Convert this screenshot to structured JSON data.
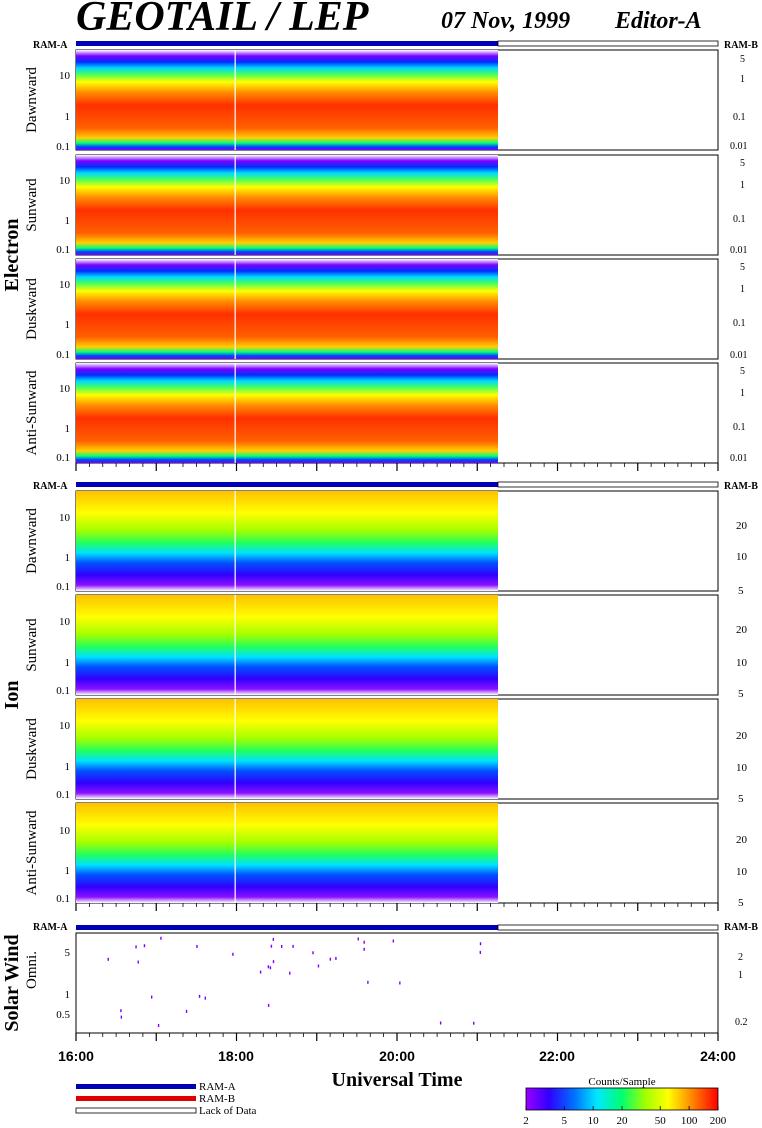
{
  "header": {
    "title": "GEOTAIL / LEP",
    "date": "07 Nov, 1999",
    "editor": "Editor-A"
  },
  "ram_labels": {
    "a": "RAM-A",
    "b": "RAM-B"
  },
  "colors": {
    "ram_a": "#0000b4",
    "ram_b": "#e00000",
    "lack_of_data": "#ffffff",
    "colorscale": [
      "#7a00ff",
      "#3000ff",
      "#0050ff",
      "#00c8ff",
      "#00ffb0",
      "#00ff30",
      "#a8ff00",
      "#ffff00",
      "#ffc000",
      "#ff7000",
      "#ff2000"
    ]
  },
  "chart_data": {
    "type": "heatmap",
    "description": "Energy-time spectrograms of counts per sample",
    "x_axis": {
      "label": "Universal Time",
      "range": [
        "16:00",
        "24:00"
      ],
      "ticks": [
        "16:00",
        "18:00",
        "20:00",
        "22:00",
        "24:00"
      ],
      "data_end": "21:15",
      "data_gap": "17:59"
    },
    "groups": [
      {
        "name": "Electron",
        "ram_segments": [
          {
            "mode": "RAM-A",
            "start": "16:00",
            "end": "21:15"
          },
          {
            "mode": "Lack of Data",
            "start": "21:15",
            "end": "24:00"
          }
        ],
        "left_ticks": [
          "10",
          "1",
          "0.1"
        ],
        "right_ticks": [
          "5",
          "1",
          "0.1",
          "0.01"
        ],
        "panels": [
          {
            "label": "Dawnward"
          },
          {
            "label": "Sunward"
          },
          {
            "label": "Duskward"
          },
          {
            "label": "Anti-Sunward"
          }
        ]
      },
      {
        "name": "Ion",
        "ram_segments": [
          {
            "mode": "RAM-A",
            "start": "16:00",
            "end": "21:15"
          },
          {
            "mode": "Lack of Data",
            "start": "21:15",
            "end": "24:00"
          }
        ],
        "left_ticks": [
          "10",
          "1",
          "0.1"
        ],
        "right_ticks": [
          "20",
          "10",
          "5"
        ],
        "panels": [
          {
            "label": "Dawnward"
          },
          {
            "label": "Sunward"
          },
          {
            "label": "Duskward"
          },
          {
            "label": "Anti-Sunward"
          }
        ]
      },
      {
        "name": "Solar Wind",
        "ram_segments": [
          {
            "mode": "RAM-A",
            "start": "16:00",
            "end": "21:15"
          },
          {
            "mode": "Lack of Data",
            "start": "21:15",
            "end": "24:00"
          }
        ],
        "left_ticks": [
          "5",
          "1",
          "0.5"
        ],
        "right_ticks": [
          "2",
          "1",
          "0.2"
        ],
        "panels": [
          {
            "label": "Omni."
          }
        ]
      }
    ],
    "legend": {
      "items": [
        {
          "label": "RAM-A",
          "color": "#0000b4"
        },
        {
          "label": "RAM-B",
          "color": "#e00000"
        },
        {
          "label": "Lack of Data",
          "color": "#ffffff"
        }
      ]
    },
    "colorbar": {
      "title": "Counts/Sample",
      "scale": "log",
      "range": [
        2,
        200
      ],
      "ticks": [
        "2",
        "5",
        "10",
        "20",
        "50",
        "100",
        "200"
      ]
    }
  }
}
